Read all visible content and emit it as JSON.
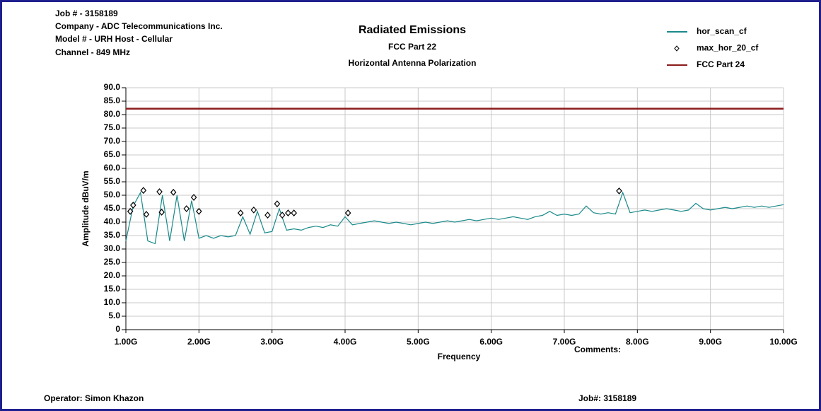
{
  "header": {
    "lines": [
      "Job # - 3158189",
      "Company - ADC Telecommunications Inc.",
      "Model # - URH Host - Cellular",
      "Channel - 849 MHz"
    ]
  },
  "chart_data": {
    "type": "line",
    "title": "Radiated Emissions",
    "subtitle": [
      "FCC Part 22",
      "Horizontal Antenna Polarization"
    ],
    "x_label": "Frequency",
    "y_label": "Amplitude dBuV/m",
    "annotation": "Comments:",
    "xlim": [
      1,
      10
    ],
    "xticks": [
      {
        "value": 1,
        "label": "1.00G"
      },
      {
        "value": 2,
        "label": "2.00G"
      },
      {
        "value": 3,
        "label": "3.00G"
      },
      {
        "value": 4,
        "label": "4.00G"
      },
      {
        "value": 5,
        "label": "5.00G"
      },
      {
        "value": 6,
        "label": "6.00G"
      },
      {
        "value": 7,
        "label": "7.00G"
      },
      {
        "value": 8,
        "label": "8.00G"
      },
      {
        "value": 9,
        "label": "9.00G"
      },
      {
        "value": 10,
        "label": "10.00G"
      }
    ],
    "ylim": [
      0,
      90
    ],
    "yticks": [
      0,
      {
        "value": 5,
        "label": "5.0"
      },
      {
        "value": 10,
        "label": "10.0"
      },
      {
        "value": 15,
        "label": "15.0"
      },
      {
        "value": 20,
        "label": "20.0"
      },
      {
        "value": 25,
        "label": "25.0"
      },
      {
        "value": 30,
        "label": "30.0"
      },
      {
        "value": 35,
        "label": "35.0"
      },
      {
        "value": 40,
        "label": "40.0"
      },
      {
        "value": 45,
        "label": "45.0"
      },
      {
        "value": 50,
        "label": "50.0"
      },
      {
        "value": 55,
        "label": "55.0"
      },
      {
        "value": 60,
        "label": "60.0"
      },
      {
        "value": 65,
        "label": "65.0"
      },
      {
        "value": 70,
        "label": "70.0"
      },
      {
        "value": 75,
        "label": "75.0"
      },
      {
        "value": 80,
        "label": "80.0"
      },
      {
        "value": 85,
        "label": "85.0"
      },
      {
        "value": 90,
        "label": "90.0"
      }
    ],
    "grid": true,
    "series": [
      {
        "name": "hor_scan_cf",
        "type": "line",
        "color": "#1a8a8a",
        "x": [
          1.0,
          1.1,
          1.2,
          1.3,
          1.4,
          1.5,
          1.6,
          1.7,
          1.8,
          1.9,
          2.0,
          2.1,
          2.2,
          2.3,
          2.4,
          2.5,
          2.6,
          2.7,
          2.8,
          2.9,
          3.0,
          3.1,
          3.2,
          3.3,
          3.4,
          3.5,
          3.6,
          3.7,
          3.8,
          3.9,
          4.0,
          4.1,
          4.2,
          4.3,
          4.4,
          4.5,
          4.6,
          4.7,
          4.8,
          4.9,
          5.0,
          5.1,
          5.2,
          5.3,
          5.4,
          5.5,
          5.6,
          5.7,
          5.8,
          5.9,
          6.0,
          6.1,
          6.2,
          6.3,
          6.4,
          6.5,
          6.6,
          6.7,
          6.8,
          6.9,
          7.0,
          7.1,
          7.2,
          7.3,
          7.4,
          7.5,
          7.6,
          7.7,
          7.8,
          7.9,
          8.0,
          8.1,
          8.2,
          8.3,
          8.4,
          8.5,
          8.6,
          8.7,
          8.8,
          8.9,
          9.0,
          9.1,
          9.2,
          9.3,
          9.4,
          9.5,
          9.6,
          9.7,
          9.8,
          9.9,
          10.0
        ],
        "values": [
          33,
          46,
          51,
          33,
          32,
          50,
          33,
          50,
          33,
          48,
          34,
          35,
          34,
          35,
          34.5,
          35,
          42,
          35.5,
          44,
          36,
          36.5,
          45,
          37,
          37.5,
          37,
          38,
          38.5,
          38,
          39,
          38.5,
          42,
          39,
          39.5,
          40,
          40.5,
          40,
          39.5,
          40,
          39.5,
          39,
          39.5,
          40,
          39.5,
          40,
          40.5,
          40,
          40.5,
          41,
          40.5,
          41,
          41.5,
          41,
          41.5,
          42,
          41.5,
          41,
          42,
          42.5,
          44,
          42.5,
          43,
          42.5,
          43,
          46,
          43.5,
          43,
          43.5,
          43,
          51,
          43.5,
          44,
          44.5,
          44,
          44.5,
          45,
          44.5,
          44,
          44.5,
          47,
          45,
          44.5,
          45,
          45.5,
          45,
          45.5,
          46,
          45.5,
          46,
          45.5,
          46,
          46.5
        ]
      },
      {
        "name": "max_hor_20_cf",
        "type": "scatter",
        "color": "#000000",
        "x": [
          1.06,
          1.1,
          1.24,
          1.28,
          1.46,
          1.49,
          1.65,
          1.83,
          1.93,
          2.0,
          2.57,
          2.75,
          2.94,
          3.07,
          3.14,
          3.22,
          3.3,
          4.04,
          7.75
        ],
        "values": [
          44.0,
          46.3,
          51.8,
          42.9,
          51.3,
          43.7,
          51.1,
          45.0,
          49.2,
          44.0,
          43.4,
          44.5,
          42.6,
          46.8,
          42.6,
          43.4,
          43.4,
          43.4,
          51.6
        ]
      },
      {
        "name": "FCC Part 24",
        "type": "line",
        "color": "#8b1a1a",
        "x": [
          1,
          10
        ],
        "values": [
          82.2,
          82.2
        ]
      }
    ]
  },
  "footer": {
    "operator": "Operator: Simon Khazon",
    "job": "Job#: 3158189"
  }
}
